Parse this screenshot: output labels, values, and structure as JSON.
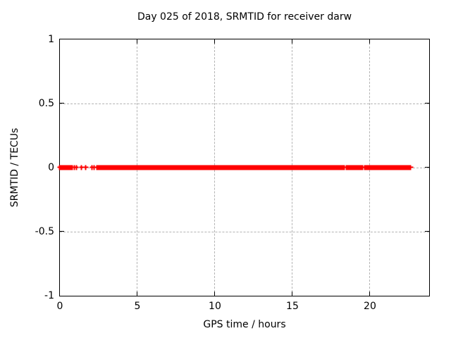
{
  "chart_data": {
    "type": "scatter",
    "title": "Day 025 of 2018, SRMTID for receiver darw",
    "xlabel": "GPS time / hours",
    "ylabel": "SRMTID / TECUs",
    "xlim": [
      0,
      23.82
    ],
    "ylim": [
      -1,
      1
    ],
    "xticks": [
      {
        "v": 0,
        "label": "0"
      },
      {
        "v": 5,
        "label": "5"
      },
      {
        "v": 10,
        "label": "10"
      },
      {
        "v": 15,
        "label": "15"
      },
      {
        "v": 20,
        "label": "20"
      }
    ],
    "yticks": [
      {
        "v": -1,
        "label": "-1"
      },
      {
        "v": -0.5,
        "label": "-0.5"
      },
      {
        "v": 0,
        "label": "0"
      },
      {
        "v": 0.5,
        "label": "0.5"
      },
      {
        "v": 1,
        "label": "1"
      }
    ],
    "grid": true,
    "legend": "none",
    "marker": "plus",
    "colors": {
      "marker": "#ff0000",
      "grid": "#b3b3b3",
      "axis": "#000000",
      "text": "#000000",
      "background": "#ffffff"
    },
    "series": [
      {
        "name": "SRMTID",
        "y_value": 0,
        "dense_runs_hours": [
          [
            0.02,
            0.5
          ],
          [
            0.59,
            0.82
          ],
          [
            2.55,
            18.36
          ],
          [
            18.5,
            18.68
          ],
          [
            18.77,
            19.55
          ],
          [
            19.68,
            22.64
          ]
        ],
        "isolated_points_hours": [
          0.95,
          1.09,
          1.41,
          1.7,
          2.11,
          2.25,
          2.39,
          2.5
        ]
      }
    ]
  }
}
